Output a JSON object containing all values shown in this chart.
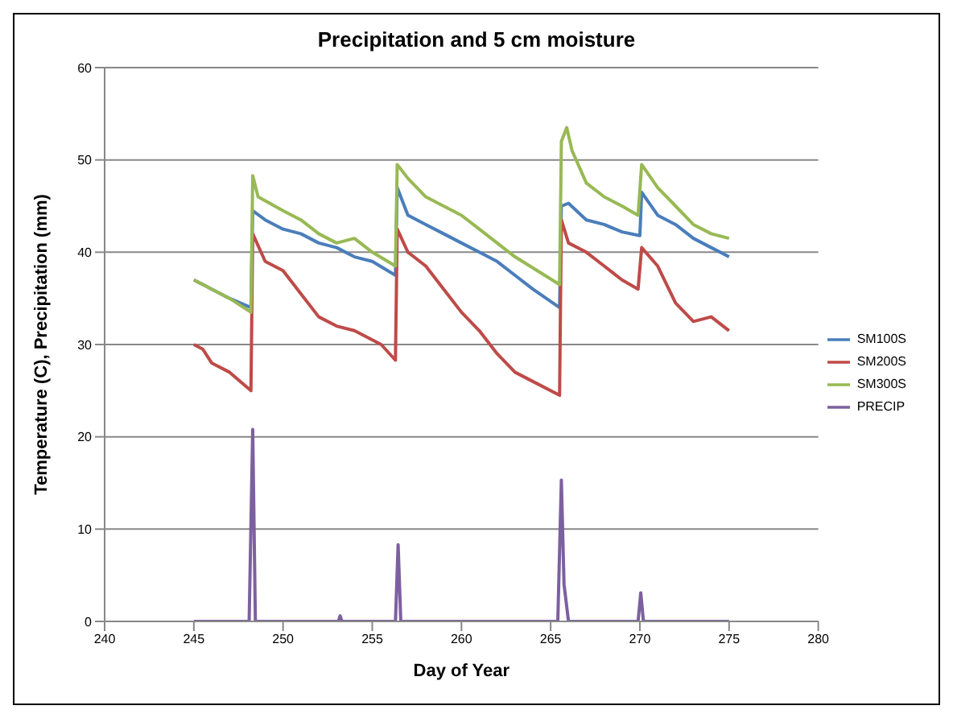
{
  "chart_data": {
    "type": "line",
    "title": "Precipitation and 5 cm moisture",
    "xlabel": "Day of Year",
    "ylabel": "Temperature (C), Precipitation (mm)",
    "xlim": [
      240,
      280
    ],
    "xticks": [
      240,
      245,
      250,
      255,
      260,
      265,
      270,
      275,
      280
    ],
    "ylim": [
      0,
      60
    ],
    "yticks": [
      0,
      10,
      20,
      30,
      40,
      50,
      60
    ],
    "grid": "y",
    "legend": "right",
    "marker": "none",
    "line_style": "solid",
    "series": [
      {
        "name": "SM100S",
        "color": "#4a7ebb",
        "x": [
          245,
          246,
          247,
          248.2,
          248.3,
          249,
          250,
          251,
          252,
          253,
          254,
          255,
          256.3,
          256.4,
          257,
          258,
          259,
          260,
          261,
          262,
          263,
          264,
          265.5,
          265.6,
          266,
          267,
          268,
          269,
          270,
          270.1,
          271,
          272,
          273,
          274,
          275
        ],
        "values": [
          37,
          36,
          35,
          34,
          44.5,
          43.5,
          42.5,
          42,
          41,
          40.5,
          39.5,
          39,
          37.5,
          47,
          44,
          43,
          42,
          41,
          40,
          39,
          37.5,
          36,
          34,
          45,
          45.3,
          43.5,
          43,
          42.2,
          41.8,
          46.5,
          44,
          43,
          41.5,
          40.5,
          39.5
        ]
      },
      {
        "name": "SM200S",
        "color": "#be4b48",
        "x": [
          245,
          245.5,
          246,
          247,
          248.2,
          248.3,
          249,
          250,
          251,
          252,
          253,
          254,
          255.5,
          256.3,
          256.4,
          257,
          258,
          259,
          260,
          261,
          262,
          263,
          264,
          265.5,
          265.6,
          266,
          267,
          268,
          269,
          269.9,
          270.1,
          271,
          272,
          273,
          274,
          275
        ],
        "values": [
          30,
          29.5,
          28,
          27,
          25,
          42,
          39,
          38,
          35.5,
          33,
          32,
          31.5,
          30,
          28.3,
          42.5,
          40,
          38.5,
          36,
          33.5,
          31.5,
          29,
          27,
          26,
          24.5,
          43.5,
          41,
          40,
          38.5,
          37,
          36,
          40.5,
          38.5,
          34.5,
          32.5,
          33,
          31.5
        ]
      },
      {
        "name": "SM300S",
        "color": "#98b954",
        "x": [
          245,
          246,
          247,
          248.2,
          248.3,
          248.6,
          250,
          251,
          252,
          253,
          254,
          255,
          256.3,
          256.4,
          257,
          258,
          259,
          260,
          261,
          262,
          263,
          265.5,
          265.6,
          265.9,
          266.2,
          267,
          268,
          269,
          269.9,
          270.1,
          271,
          272,
          273,
          274,
          275
        ],
        "values": [
          37,
          36,
          35,
          33.5,
          48.3,
          46,
          44.5,
          43.5,
          42,
          41,
          41.5,
          40,
          38.5,
          49.5,
          48,
          46,
          45,
          44,
          42.5,
          41,
          39.5,
          36.5,
          52,
          53.5,
          51,
          47.5,
          46,
          45,
          44,
          49.5,
          47,
          45,
          43,
          42,
          41.5
        ]
      },
      {
        "name": "PRECIP",
        "color": "#7d60a0",
        "x": [
          245,
          248.1,
          248.3,
          248.45,
          253.1,
          253.2,
          253.3,
          256.3,
          256.45,
          256.6,
          265.4,
          265.6,
          265.75,
          266,
          269.9,
          270.05,
          270.2,
          275
        ],
        "values": [
          0,
          0,
          20.8,
          0,
          0,
          0.6,
          0,
          0,
          8.3,
          0,
          0,
          15.3,
          4,
          0,
          0,
          3.1,
          0,
          0
        ]
      }
    ]
  }
}
